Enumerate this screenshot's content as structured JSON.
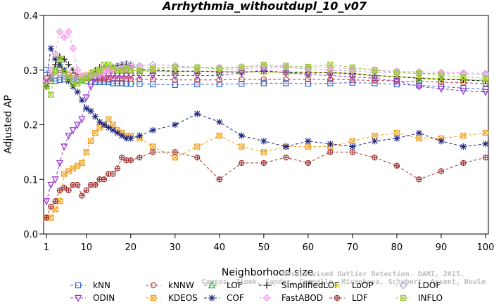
{
  "chart_data": {
    "type": "line",
    "title": "Arrhythmia_withoutdupl_10_v07",
    "xlabel": "Neighborhood size",
    "ylabel": "Adjusted AP",
    "xlim": [
      1,
      100
    ],
    "ylim": [
      0.0,
      0.4
    ],
    "x_ticks": [
      1,
      10,
      20,
      30,
      40,
      50,
      60,
      70,
      80,
      90,
      100
    ],
    "y_ticks": [
      "0.0",
      "0.1",
      "0.2",
      "0.3",
      "0.4"
    ],
    "grid": false,
    "legend_position": "bottom",
    "x": [
      1,
      2,
      3,
      4,
      5,
      6,
      7,
      8,
      9,
      10,
      11,
      12,
      13,
      14,
      15,
      16,
      17,
      18,
      19,
      20,
      22,
      25,
      30,
      35,
      40,
      45,
      50,
      55,
      60,
      65,
      70,
      75,
      80,
      85,
      90,
      95,
      100
    ],
    "series": [
      {
        "name": "kNN",
        "color": "#3366cc",
        "marker": "square",
        "values": [
          0.3,
          0.28,
          0.28,
          0.282,
          0.283,
          0.283,
          0.283,
          0.282,
          0.282,
          0.28,
          0.279,
          0.278,
          0.278,
          0.278,
          0.278,
          0.276,
          0.276,
          0.276,
          0.275,
          0.275,
          0.275,
          0.274,
          0.273,
          0.274,
          0.274,
          0.275,
          0.276,
          0.276,
          0.275,
          0.276,
          0.277,
          0.276,
          0.274,
          0.272,
          0.27,
          0.267,
          0.265
        ]
      },
      {
        "name": "kNNW",
        "color": "#cc3333",
        "marker": "circle",
        "values": [
          0.285,
          0.285,
          0.29,
          0.3,
          0.295,
          0.292,
          0.29,
          0.288,
          0.287,
          0.286,
          0.286,
          0.286,
          0.285,
          0.285,
          0.284,
          0.284,
          0.284,
          0.284,
          0.284,
          0.284,
          0.283,
          0.283,
          0.282,
          0.282,
          0.282,
          0.283,
          0.283,
          0.283,
          0.283,
          0.283,
          0.282,
          0.281,
          0.28,
          0.279,
          0.278,
          0.277,
          0.275
        ]
      },
      {
        "name": "LOF",
        "color": "#33aa33",
        "marker": "triangle-up",
        "values": [
          0.27,
          0.28,
          0.3,
          0.31,
          0.295,
          0.285,
          0.28,
          0.28,
          0.282,
          0.285,
          0.29,
          0.293,
          0.297,
          0.3,
          0.302,
          0.302,
          0.3,
          0.3,
          0.3,
          0.3,
          0.298,
          0.298,
          0.297,
          0.298,
          0.297,
          0.297,
          0.298,
          0.296,
          0.294,
          0.296,
          0.292,
          0.29,
          0.288,
          0.286,
          0.284,
          0.283,
          0.28
        ]
      },
      {
        "name": "SimplifiedLOF",
        "color": "#111111",
        "marker": "plus",
        "values": [
          0.27,
          0.29,
          0.31,
          0.325,
          0.32,
          0.31,
          0.3,
          0.29,
          0.287,
          0.29,
          0.295,
          0.3,
          0.305,
          0.305,
          0.305,
          0.306,
          0.308,
          0.31,
          0.31,
          0.308,
          0.302,
          0.3,
          0.298,
          0.298,
          0.297,
          0.296,
          0.298,
          0.296,
          0.296,
          0.295,
          0.294,
          0.29,
          0.288,
          0.285,
          0.283,
          0.282,
          0.28
        ]
      },
      {
        "name": "LoOP",
        "color": "#e6d800",
        "marker": "cross",
        "values": [
          0.28,
          0.29,
          0.3,
          0.31,
          0.3,
          0.29,
          0.287,
          0.287,
          0.29,
          0.292,
          0.296,
          0.3,
          0.302,
          0.303,
          0.302,
          0.302,
          0.3,
          0.3,
          0.3,
          0.3,
          0.298,
          0.298,
          0.297,
          0.298,
          0.298,
          0.297,
          0.296,
          0.294,
          0.295,
          0.296,
          0.294,
          0.29,
          0.288,
          0.286,
          0.284,
          0.283,
          0.282
        ]
      },
      {
        "name": "LDOF",
        "color": "#b0a8dd",
        "marker": "diamond",
        "values": [
          0.28,
          0.29,
          0.29,
          0.295,
          0.29,
          0.285,
          0.285,
          0.285,
          0.287,
          0.29,
          0.292,
          0.295,
          0.297,
          0.3,
          0.302,
          0.305,
          0.308,
          0.31,
          0.312,
          0.31,
          0.308,
          0.31,
          0.308,
          0.305,
          0.302,
          0.302,
          0.305,
          0.305,
          0.302,
          0.3,
          0.298,
          0.296,
          0.295,
          0.294,
          0.294,
          0.293,
          0.292
        ]
      },
      {
        "name": "ODIN",
        "color": "#9933cc",
        "marker": "triangle-down",
        "values": [
          0.06,
          0.09,
          0.1,
          0.13,
          0.16,
          0.18,
          0.19,
          0.2,
          0.21,
          0.25,
          0.27,
          0.285,
          0.29,
          0.29,
          0.29,
          0.29,
          0.29,
          0.29,
          0.29,
          0.29,
          0.29,
          0.29,
          0.29,
          0.29,
          0.29,
          0.295,
          0.3,
          0.295,
          0.292,
          0.29,
          0.288,
          0.285,
          0.28,
          0.27,
          0.266,
          0.262,
          0.26
        ]
      },
      {
        "name": "KDEOS",
        "color": "#f0a020",
        "marker": "boxtimes",
        "values": [
          0.03,
          0.03,
          0.045,
          0.06,
          0.11,
          0.115,
          0.12,
          0.125,
          0.13,
          0.15,
          0.17,
          0.185,
          0.195,
          0.2,
          0.21,
          0.2,
          0.19,
          0.185,
          0.18,
          0.18,
          0.175,
          0.16,
          0.14,
          0.16,
          0.18,
          0.16,
          0.15,
          0.16,
          0.16,
          0.16,
          0.17,
          0.18,
          0.185,
          0.175,
          0.175,
          0.18,
          0.185
        ]
      },
      {
        "name": "COF",
        "color": "#1a237e",
        "marker": "asterisk",
        "values": [
          0.28,
          0.34,
          0.32,
          0.31,
          0.3,
          0.28,
          0.27,
          0.26,
          0.245,
          0.23,
          0.225,
          0.215,
          0.205,
          0.2,
          0.195,
          0.19,
          0.185,
          0.18,
          0.175,
          0.175,
          0.18,
          0.19,
          0.2,
          0.22,
          0.205,
          0.18,
          0.17,
          0.16,
          0.17,
          0.165,
          0.16,
          0.17,
          0.175,
          0.185,
          0.17,
          0.16,
          0.165
        ]
      },
      {
        "name": "FastABOD",
        "color": "#f5a0e8",
        "marker": "diamond-plus",
        "values": [
          0.28,
          0.3,
          0.33,
          0.37,
          0.36,
          0.37,
          0.34,
          0.3,
          0.29,
          0.29,
          0.29,
          0.29,
          0.292,
          0.295,
          0.3,
          0.3,
          0.3,
          0.302,
          0.303,
          0.305,
          0.305,
          0.305,
          0.305,
          0.305,
          0.305,
          0.306,
          0.308,
          0.306,
          0.304,
          0.305,
          0.302,
          0.3,
          0.298,
          0.297,
          0.296,
          0.295,
          0.294
        ]
      },
      {
        "name": "LDF",
        "color": "#a03030",
        "marker": "circle-plus",
        "values": [
          0.03,
          0.05,
          0.06,
          0.08,
          0.085,
          0.08,
          0.09,
          0.09,
          0.07,
          0.08,
          0.09,
          0.09,
          0.1,
          0.1,
          0.11,
          0.11,
          0.12,
          0.14,
          0.135,
          0.135,
          0.14,
          0.15,
          0.15,
          0.14,
          0.1,
          0.13,
          0.13,
          0.14,
          0.13,
          0.15,
          0.15,
          0.14,
          0.125,
          0.1,
          0.115,
          0.13,
          0.14
        ]
      },
      {
        "name": "INFLO",
        "color": "#99cc33",
        "marker": "boxtimes",
        "values": [
          0.27,
          0.255,
          0.3,
          0.32,
          0.295,
          0.285,
          0.275,
          0.275,
          0.28,
          0.285,
          0.29,
          0.295,
          0.3,
          0.31,
          0.31,
          0.305,
          0.3,
          0.3,
          0.302,
          0.3,
          0.298,
          0.302,
          0.305,
          0.305,
          0.303,
          0.305,
          0.31,
          0.308,
          0.306,
          0.31,
          0.305,
          0.3,
          0.296,
          0.294,
          0.29,
          0.288,
          0.285
        ]
      }
    ],
    "watermark": [
      "Unsupervised Outlier Detection. DAMI, 2015.",
      "Campos, Zimek, Sander, Campello, Micenkova, Schubert, Assent, Houle"
    ]
  }
}
